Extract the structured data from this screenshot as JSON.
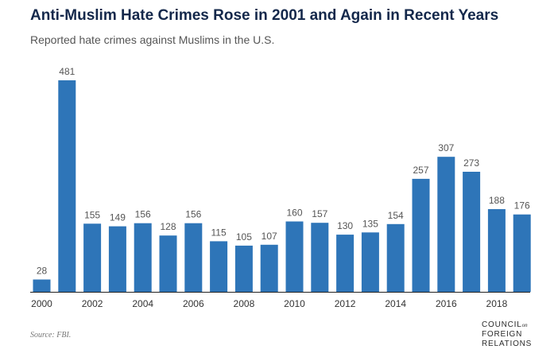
{
  "header": {
    "title": "Anti-Muslim Hate Crimes Rose in 2001 and Again in Recent Years",
    "subtitle": "Reported hate crimes against Muslims in the U.S."
  },
  "footer": {
    "source": "Source: FBI.",
    "logo": {
      "line1": "COUNCIL",
      "line1_suffix": "on",
      "line2": "FOREIGN",
      "line3": "RELATIONS"
    }
  },
  "colors": {
    "bar": "#2e75b8",
    "title": "#14284b",
    "label": "#555555",
    "baseline": "#222222"
  },
  "chart_data": {
    "type": "bar",
    "title": "Anti-Muslim Hate Crimes Rose in 2001 and Again in Recent Years",
    "subtitle": "Reported hate crimes against Muslims in the U.S.",
    "categories": [
      "2000",
      "2001",
      "2002",
      "2003",
      "2004",
      "2005",
      "2006",
      "2007",
      "2008",
      "2009",
      "2010",
      "2011",
      "2012",
      "2013",
      "2014",
      "2015",
      "2016",
      "2017",
      "2018",
      "2019"
    ],
    "values": [
      28,
      481,
      155,
      149,
      156,
      128,
      156,
      115,
      105,
      107,
      160,
      157,
      130,
      135,
      154,
      257,
      307,
      273,
      188,
      176
    ],
    "x_tick_labels": [
      "2000",
      "2002",
      "2004",
      "2006",
      "2008",
      "2010",
      "2012",
      "2014",
      "2016",
      "2018"
    ],
    "data_labels": true,
    "grid": false,
    "legend": "none",
    "xlabel": "",
    "ylabel": "",
    "ylim": [
      0,
      481
    ]
  }
}
